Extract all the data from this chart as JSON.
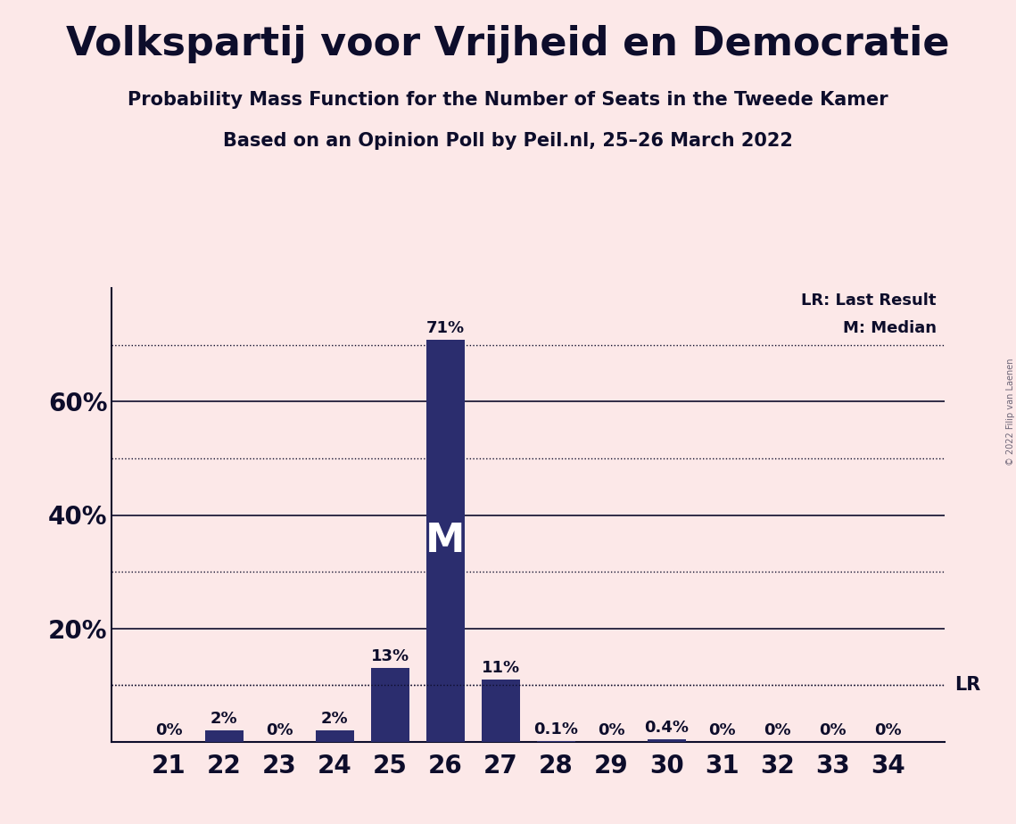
{
  "title": "Volkspartij voor Vrijheid en Democratie",
  "subtitle1": "Probability Mass Function for the Number of Seats in the Tweede Kamer",
  "subtitle2": "Based on an Opinion Poll by Peil.nl, 25–26 March 2022",
  "copyright": "© 2022 Filip van Laenen",
  "categories": [
    21,
    22,
    23,
    24,
    25,
    26,
    27,
    28,
    29,
    30,
    31,
    32,
    33,
    34
  ],
  "values": [
    0.0,
    2.0,
    0.0,
    2.0,
    13.0,
    71.0,
    11.0,
    0.1,
    0.0,
    0.4,
    0.0,
    0.0,
    0.0,
    0.0
  ],
  "bar_labels": [
    "0%",
    "2%",
    "0%",
    "2%",
    "13%",
    "71%",
    "11%",
    "0.1%",
    "0%",
    "0.4%",
    "0%",
    "0%",
    "0%",
    "0%"
  ],
  "bar_color": "#2b2d6e",
  "background_color": "#fce8e8",
  "text_color": "#0d0d2b",
  "median_seat": 26,
  "ylim": [
    0,
    80
  ],
  "solid_grid": [
    20,
    40,
    60
  ],
  "dotted_grid": [
    10,
    30,
    50,
    70
  ],
  "lr_label": "LR: Last Result",
  "median_label": "M: Median",
  "lr_value": 10.0,
  "title_fontsize": 32,
  "subtitle_fontsize": 15,
  "tick_fontsize": 20,
  "label_fontsize": 13,
  "bar_label_fontsize": 13,
  "M_fontsize": 32
}
